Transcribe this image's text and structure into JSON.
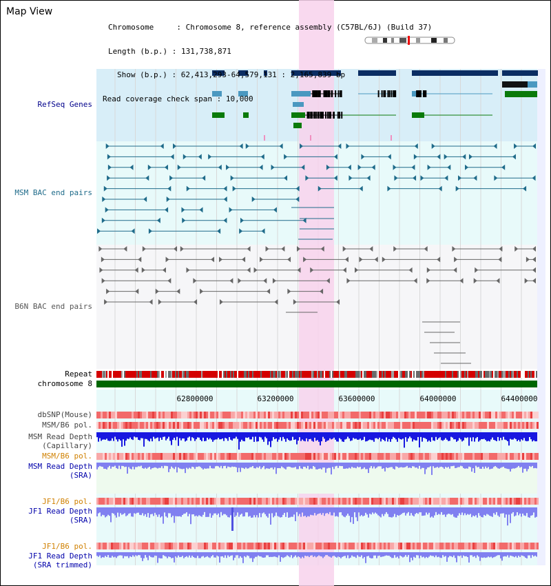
{
  "title": "Map View",
  "info": {
    "chromosome_label": "Chromosome",
    "chromosome_value": "Chromosome 8, reference assembly (C57BL/6J) (Build 37)",
    "length_label": "Length (b.p.)",
    "length_value": "131,738,871",
    "show_label": "Show (b.p.)",
    "show_value": "62,413,293-64,579,131 : 2,165,839 bp",
    "span_label": "Read coverage check span",
    "span_value": "10,000"
  },
  "tracks": {
    "refseq": "RefSeq Genes",
    "msm_bac": "MSM BAC end pairs",
    "b6n_bac": "B6N BAC end pairs",
    "repeat": "Repeat",
    "chromosome": "chromosome 8",
    "dbsnp": "dbSNP(Mouse)",
    "msm_b6_pol_1": "MSM/B6 pol.",
    "msm_depth_cap_1": "MSM Read Depth",
    "msm_depth_cap_2": "(Capillary)",
    "msm_b6_pol_2": "MSM/B6 pol.",
    "msm_depth_sra_1": "MSM Read Depth",
    "msm_depth_sra_2": "(SRA)",
    "jf1_b6_pol_1": "JF1/B6 pol.",
    "jf1_depth_sra_1": "JF1 Read Depth",
    "jf1_depth_sra_2": "(SRA)",
    "jf1_b6_pol_2": "JF1/B6 pol.",
    "jf1_depth_trim_1": "JF1 Read Depth",
    "jf1_depth_trim_2": "(SRA trimmed)"
  },
  "axis_ticks": [
    "62800000",
    "63200000",
    "63600000",
    "64000000",
    "64400000"
  ],
  "colors": {
    "refseq_bg": "#d8eef8",
    "bac_bg": "#e8fafa",
    "highlight": "#f8d2ec",
    "msm_bac_color": "#1f6b8a",
    "b6n_bac_color": "#666666",
    "gene_navy": "#0b2d63",
    "gene_teal": "#4a98c0",
    "gene_green": "#0a7a0a",
    "chromosome_bar": "#006600",
    "depth_blue": "#1818e0",
    "depth_light": "#8080f0"
  }
}
